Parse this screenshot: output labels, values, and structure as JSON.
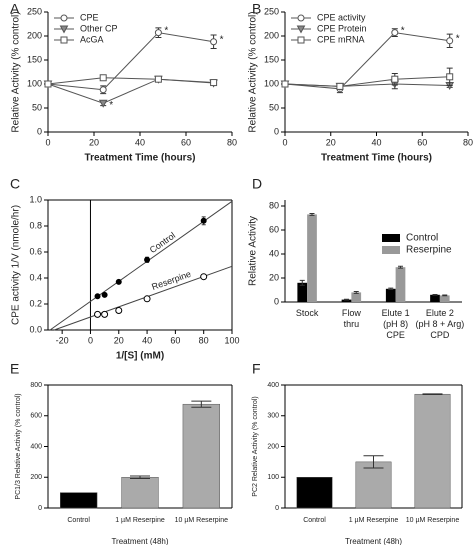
{
  "chart_data": [
    {
      "type": "line",
      "label": "A",
      "x": [
        0,
        24,
        48,
        72
      ],
      "xlabel": "Treatment Time (hours)",
      "ylabel": "Relative Activity (% control)",
      "xlim": [
        0,
        80
      ],
      "xticks": [
        0,
        20,
        40,
        60,
        80
      ],
      "ylim": [
        0,
        250
      ],
      "yticks": [
        0,
        50,
        100,
        150,
        200,
        250
      ],
      "legend": "upper left",
      "series": [
        {
          "name": "CPE",
          "color": "#555555",
          "marker": "circle",
          "values": [
            100,
            88,
            207,
            188
          ],
          "errors": [
            0,
            8,
            10,
            14
          ]
        },
        {
          "name": "Other CP",
          "color": "#555555",
          "marker": "triangle",
          "values": [
            100,
            60,
            110,
            102
          ],
          "errors": [
            0,
            5,
            4,
            4
          ]
        },
        {
          "name": "AcGA",
          "color": "#555555",
          "marker": "square",
          "values": [
            100,
            113,
            110,
            103
          ],
          "errors": [
            0,
            5,
            4,
            4
          ]
        }
      ],
      "annotations": [
        {
          "text": "*",
          "series": 0,
          "index": 2
        },
        {
          "text": "*",
          "series": 0,
          "index": 3
        },
        {
          "text": "*",
          "series": 1,
          "index": 1
        }
      ]
    },
    {
      "type": "line",
      "label": "B",
      "x": [
        0,
        24,
        48,
        72
      ],
      "xlabel": "Treatment Time (hours)",
      "ylabel": "Relative Activity (% control)",
      "xlim": [
        0,
        80
      ],
      "xticks": [
        0,
        20,
        40,
        60,
        80
      ],
      "ylim": [
        0,
        250
      ],
      "yticks": [
        0,
        50,
        100,
        150,
        200,
        250
      ],
      "legend": "upper left",
      "series": [
        {
          "name": "CPE activity",
          "color": "#555555",
          "marker": "circle",
          "values": [
            100,
            90,
            207,
            190
          ],
          "errors": [
            0,
            8,
            8,
            14
          ]
        },
        {
          "name": "CPE Protein",
          "color": "#555555",
          "marker": "triangle",
          "values": [
            100,
            95,
            100,
            97
          ],
          "errors": [
            0,
            6,
            10,
            4
          ]
        },
        {
          "name": "CPE mRNA",
          "color": "#555555",
          "marker": "square",
          "values": [
            100,
            95,
            110,
            115
          ],
          "errors": [
            0,
            6,
            12,
            18
          ]
        }
      ],
      "annotations": [
        {
          "text": "*",
          "series": 0,
          "index": 2
        },
        {
          "text": "*",
          "series": 0,
          "index": 3
        }
      ]
    },
    {
      "type": "scatter",
      "label": "C",
      "xlabel": "1/[S] (mM)",
      "ylabel": "CPE activity 1/V (nmole/hr)",
      "frame": true,
      "xlim": [
        -30,
        100
      ],
      "xticks": [
        -20,
        0,
        20,
        40,
        60,
        80,
        100
      ],
      "ylim": [
        0,
        1
      ],
      "yticks": [
        {
          "value": 0,
          "label": "0.0"
        },
        {
          "value": 0.2,
          "label": "0.2"
        },
        {
          "value": 0.4,
          "label": "0.4"
        },
        {
          "value": 0.6,
          "label": "0.6"
        },
        {
          "value": 0.8,
          "label": "0.8"
        },
        {
          "value": 1,
          "label": "1.0"
        }
      ],
      "series": [
        {
          "name": "Control",
          "color": "#000000",
          "marker": "filled-circle",
          "x": [
            5,
            10,
            20,
            40,
            80
          ],
          "values": [
            0.26,
            0.27,
            0.37,
            0.54,
            0.84
          ],
          "errors": [
            0.01,
            0.01,
            0.01,
            0.02,
            0.03
          ],
          "fit": {
            "slope": 0.0077,
            "intercept": 0.22
          }
        },
        {
          "name": "Reserpine",
          "color": "#000000",
          "marker": "circle",
          "x": [
            5,
            10,
            20,
            40,
            80
          ],
          "values": [
            0.12,
            0.12,
            0.15,
            0.24,
            0.41
          ],
          "errors": [
            0.01,
            0.01,
            0.01,
            0.01,
            0.01
          ],
          "fit": {
            "slope": 0.0039,
            "intercept": 0.1
          }
        }
      ]
    },
    {
      "type": "grouped-bar",
      "label": "D",
      "ylabel": "Relative Activity",
      "legend": "upper right",
      "categories": [
        "Stock",
        "Flow\nthru",
        "Elute 1\n(pH 8)\nCPE",
        "Elute 2\n(pH 8 + Arg)\nCPD"
      ],
      "ylim": [
        0,
        85
      ],
      "yticks": [
        0,
        20,
        40,
        60,
        80
      ],
      "series": [
        {
          "name": "Control",
          "color": "#000000",
          "values": [
            16,
            2,
            11,
            6
          ],
          "errors": [
            2,
            0.3,
            0.6,
            0.3
          ]
        },
        {
          "name": "Reserpine",
          "color": "#999999",
          "values": [
            73,
            8,
            29,
            5.5
          ],
          "errors": [
            0.8,
            0.8,
            0.8,
            0.3
          ]
        }
      ]
    },
    {
      "type": "bar",
      "label": "E",
      "ylabel": "PC1/3 Relative Activity (% control)",
      "xlabel": "Treatment (48h)",
      "frame": true,
      "categories": [
        "Control",
        "1 µM Reserpine",
        "10 µM Reserpine"
      ],
      "values": [
        100,
        200,
        675
      ],
      "errors": [
        0,
        8,
        20
      ],
      "colors": [
        "#000000",
        "#aaaaaa",
        "#aaaaaa"
      ],
      "ylim": [
        0,
        800
      ],
      "yticks": [
        0,
        200,
        400,
        600,
        800
      ]
    },
    {
      "type": "bar",
      "label": "F",
      "ylabel": "PC2 Relative Activity (% control)",
      "xlabel": "Treatment (48h)",
      "frame": true,
      "categories": [
        "Control",
        "1 µM Reserpine",
        "10 µM Reserpine"
      ],
      "values": [
        100,
        150,
        370
      ],
      "errors": [
        0,
        20,
        1
      ],
      "colors": [
        "#000000",
        "#aaaaaa",
        "#aaaaaa"
      ],
      "ylim": [
        0,
        400
      ],
      "yticks": [
        0,
        100,
        200,
        300,
        400
      ]
    }
  ]
}
